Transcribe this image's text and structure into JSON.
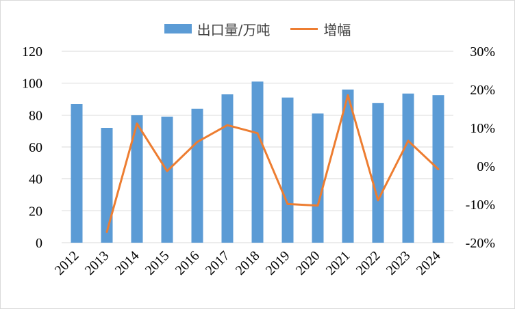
{
  "chart_data": {
    "type": "bar",
    "categories": [
      "2012",
      "2013",
      "2014",
      "2015",
      "2016",
      "2017",
      "2018",
      "2019",
      "2020",
      "2021",
      "2022",
      "2023",
      "2024"
    ],
    "series": [
      {
        "name": "出口量/万吨",
        "type": "bar",
        "axis": "left",
        "color": "#5b9bd5",
        "values": [
          87,
          72,
          80,
          79,
          84,
          93,
          101,
          91,
          81,
          96,
          87.5,
          93.5,
          92.5
        ]
      },
      {
        "name": "增幅",
        "type": "line",
        "axis": "right",
        "color": "#ed7d31",
        "values": [
          null,
          -17.2,
          11.1,
          -1.3,
          6.3,
          10.7,
          8.6,
          -9.9,
          -10.3,
          18.5,
          -8.9,
          6.6,
          -0.8
        ]
      }
    ],
    "y_left": {
      "min": 0,
      "max": 120,
      "step": 20,
      "ticks": [
        "0",
        "20",
        "40",
        "60",
        "80",
        "100",
        "120"
      ]
    },
    "y_right": {
      "min": -20,
      "max": 30,
      "step": 10,
      "ticks": [
        "-20%",
        "-10%",
        "0%",
        "10%",
        "20%",
        "30%"
      ]
    },
    "grid": true,
    "legend_position": "top"
  }
}
